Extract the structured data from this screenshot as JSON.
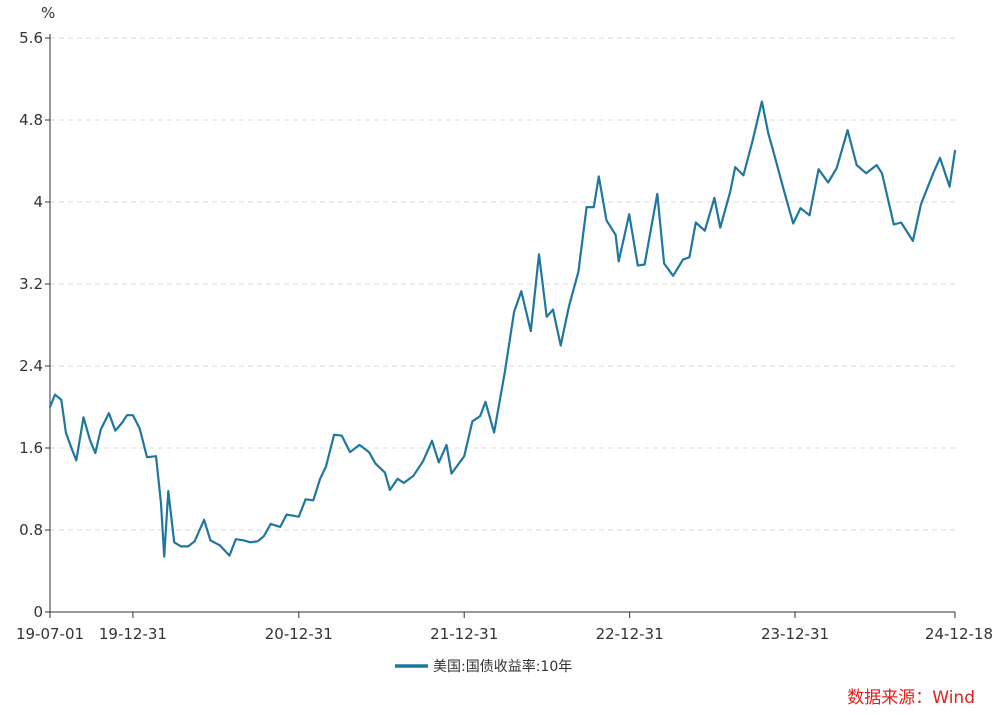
{
  "chart_data": {
    "type": "line",
    "title": "",
    "unit_label": "%",
    "xlabel": "",
    "ylabel": "",
    "ylim": [
      0,
      5.6
    ],
    "y_ticks": [
      "0",
      "0.8",
      "1.6",
      "2.4",
      "3.2",
      "4",
      "4.8",
      "5.6"
    ],
    "y_tick_values": [
      0,
      0.8,
      1.6,
      2.4,
      3.2,
      4,
      4.8,
      5.6
    ],
    "x_range": [
      "2019-07-01",
      "2024-12-18"
    ],
    "x_ticks": [
      {
        "label": "19-07-01",
        "date": "2019-07-01"
      },
      {
        "label": "19-12-31",
        "date": "2019-12-31"
      },
      {
        "label": "20-12-31",
        "date": "2020-12-31"
      },
      {
        "label": "21-12-31",
        "date": "2021-12-31"
      },
      {
        "label": "22-12-31",
        "date": "2022-12-31"
      },
      {
        "label": "23-12-31",
        "date": "2023-12-31"
      },
      {
        "label": "24-12-18",
        "date": "2024-12-18"
      }
    ],
    "grid": "horizontal-dashed",
    "legend_position": "bottom-center",
    "series": [
      {
        "name": "美国:国债收益率:10年",
        "color": "#1f77a0",
        "points": [
          [
            "2019-07-01",
            2.0
          ],
          [
            "2019-07-12",
            2.12
          ],
          [
            "2019-07-26",
            2.07
          ],
          [
            "2019-08-05",
            1.75
          ],
          [
            "2019-08-19",
            1.58
          ],
          [
            "2019-08-28",
            1.48
          ],
          [
            "2019-09-13",
            1.9
          ],
          [
            "2019-09-27",
            1.68
          ],
          [
            "2019-10-09",
            1.55
          ],
          [
            "2019-10-21",
            1.78
          ],
          [
            "2019-11-08",
            1.94
          ],
          [
            "2019-11-22",
            1.77
          ],
          [
            "2019-12-06",
            1.84
          ],
          [
            "2019-12-18",
            1.92
          ],
          [
            "2019-12-31",
            1.92
          ],
          [
            "2020-01-15",
            1.79
          ],
          [
            "2020-01-31",
            1.51
          ],
          [
            "2020-02-20",
            1.52
          ],
          [
            "2020-03-02",
            1.06
          ],
          [
            "2020-03-09",
            0.54
          ],
          [
            "2020-03-18",
            1.18
          ],
          [
            "2020-03-31",
            0.68
          ],
          [
            "2020-04-15",
            0.64
          ],
          [
            "2020-05-01",
            0.64
          ],
          [
            "2020-05-15",
            0.69
          ],
          [
            "2020-06-05",
            0.9
          ],
          [
            "2020-06-19",
            0.7
          ],
          [
            "2020-07-10",
            0.65
          ],
          [
            "2020-07-31",
            0.55
          ],
          [
            "2020-08-14",
            0.71
          ],
          [
            "2020-08-31",
            0.7
          ],
          [
            "2020-09-15",
            0.68
          ],
          [
            "2020-10-01",
            0.69
          ],
          [
            "2020-10-15",
            0.74
          ],
          [
            "2020-10-30",
            0.86
          ],
          [
            "2020-11-20",
            0.83
          ],
          [
            "2020-12-04",
            0.95
          ],
          [
            "2020-12-31",
            0.93
          ],
          [
            "2021-01-15",
            1.1
          ],
          [
            "2021-02-01",
            1.09
          ],
          [
            "2021-02-16",
            1.3
          ],
          [
            "2021-03-01",
            1.42
          ],
          [
            "2021-03-19",
            1.73
          ],
          [
            "2021-04-05",
            1.72
          ],
          [
            "2021-04-23",
            1.56
          ],
          [
            "2021-05-14",
            1.63
          ],
          [
            "2021-06-04",
            1.56
          ],
          [
            "2021-06-18",
            1.45
          ],
          [
            "2021-07-09",
            1.36
          ],
          [
            "2021-07-20",
            1.19
          ],
          [
            "2021-08-06",
            1.3
          ],
          [
            "2021-08-20",
            1.26
          ],
          [
            "2021-09-10",
            1.33
          ],
          [
            "2021-10-01",
            1.47
          ],
          [
            "2021-10-21",
            1.67
          ],
          [
            "2021-11-05",
            1.46
          ],
          [
            "2021-11-22",
            1.63
          ],
          [
            "2021-12-03",
            1.35
          ],
          [
            "2021-12-31",
            1.52
          ],
          [
            "2022-01-18",
            1.86
          ],
          [
            "2022-02-04",
            1.91
          ],
          [
            "2022-02-16",
            2.05
          ],
          [
            "2022-03-07",
            1.75
          ],
          [
            "2022-03-31",
            2.35
          ],
          [
            "2022-04-20",
            2.93
          ],
          [
            "2022-05-06",
            3.13
          ],
          [
            "2022-05-27",
            2.74
          ],
          [
            "2022-06-14",
            3.49
          ],
          [
            "2022-07-01",
            2.88
          ],
          [
            "2022-07-15",
            2.95
          ],
          [
            "2022-08-01",
            2.6
          ],
          [
            "2022-08-19",
            2.98
          ],
          [
            "2022-09-09",
            3.32
          ],
          [
            "2022-09-27",
            3.95
          ],
          [
            "2022-10-13",
            3.95
          ],
          [
            "2022-10-24",
            4.25
          ],
          [
            "2022-11-10",
            3.82
          ],
          [
            "2022-11-30",
            3.68
          ],
          [
            "2022-12-07",
            3.42
          ],
          [
            "2022-12-30",
            3.88
          ],
          [
            "2023-01-18",
            3.38
          ],
          [
            "2023-02-02",
            3.39
          ],
          [
            "2023-03-02",
            4.08
          ],
          [
            "2023-03-17",
            3.4
          ],
          [
            "2023-04-06",
            3.28
          ],
          [
            "2023-04-28",
            3.44
          ],
          [
            "2023-05-12",
            3.46
          ],
          [
            "2023-05-26",
            3.8
          ],
          [
            "2023-06-15",
            3.72
          ],
          [
            "2023-07-06",
            4.04
          ],
          [
            "2023-07-19",
            3.75
          ],
          [
            "2023-08-10",
            4.1
          ],
          [
            "2023-08-21",
            4.34
          ],
          [
            "2023-09-08",
            4.26
          ],
          [
            "2023-09-28",
            4.59
          ],
          [
            "2023-10-19",
            4.98
          ],
          [
            "2023-11-02",
            4.67
          ],
          [
            "2023-11-16",
            4.45
          ],
          [
            "2023-12-06",
            4.12
          ],
          [
            "2023-12-27",
            3.79
          ],
          [
            "2024-01-12",
            3.94
          ],
          [
            "2024-02-01",
            3.87
          ],
          [
            "2024-02-21",
            4.32
          ],
          [
            "2024-03-13",
            4.19
          ],
          [
            "2024-04-01",
            4.33
          ],
          [
            "2024-04-25",
            4.7
          ],
          [
            "2024-05-15",
            4.36
          ],
          [
            "2024-06-05",
            4.28
          ],
          [
            "2024-06-28",
            4.36
          ],
          [
            "2024-07-10",
            4.28
          ],
          [
            "2024-08-05",
            3.78
          ],
          [
            "2024-08-21",
            3.8
          ],
          [
            "2024-09-16",
            3.62
          ],
          [
            "2024-10-04",
            3.98
          ],
          [
            "2024-10-31",
            4.28
          ],
          [
            "2024-11-15",
            4.43
          ],
          [
            "2024-12-06",
            4.15
          ],
          [
            "2024-12-18",
            4.5
          ]
        ]
      }
    ]
  },
  "source": "数据来源：Wind"
}
